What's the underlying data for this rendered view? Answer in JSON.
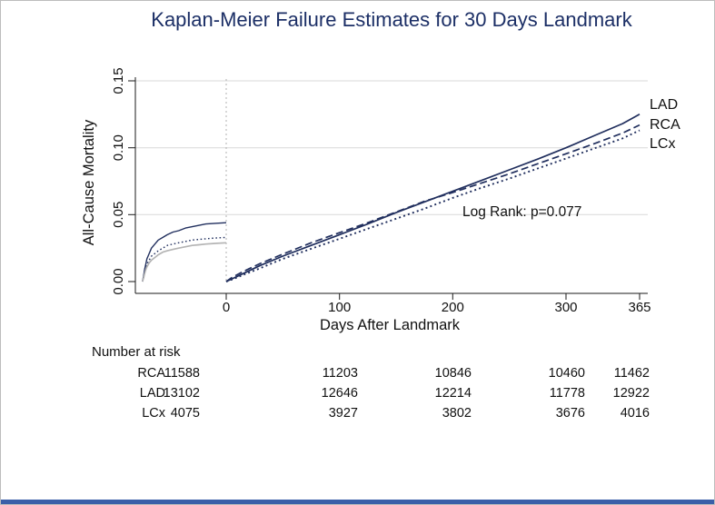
{
  "chart_data": {
    "type": "line",
    "title": "Kaplan-Meier Failure Estimates for 30 Days Landmark",
    "xlabel": "Days After Landmark",
    "ylabel": "All-Cause Mortality",
    "x_ticks": [
      "0",
      "100",
      "200",
      "300",
      "365"
    ],
    "x_tick_values": [
      0,
      100,
      200,
      300,
      365
    ],
    "y_ticks": [
      "0.00",
      "0.05",
      "0.10",
      "0.15"
    ],
    "y_tick_values": [
      0,
      0.05,
      0.1,
      0.15
    ],
    "xlim_days": [
      -75,
      365
    ],
    "ylim": [
      0,
      0.15
    ],
    "landmark_x": 0,
    "annotation": "Log Rank: p=0.077",
    "legend_labels": {
      "lad": "LAD",
      "rca": "RCA",
      "lcx": "LCx"
    },
    "colors": {
      "navy": "#212f5e",
      "gray": "#b4b4b4",
      "title": "#1c2f66",
      "bottom_bar": "#3a5fa8"
    },
    "series": [
      {
        "name": "LAD",
        "segment": "pre-landmark",
        "style": "solid",
        "color_key": "navy",
        "width": 1.4,
        "points": [
          [
            -74,
            0
          ],
          [
            -73,
            0.004
          ],
          [
            -72,
            0.009
          ],
          [
            -71,
            0.013
          ],
          [
            -70,
            0.017
          ],
          [
            -68,
            0.021
          ],
          [
            -66,
            0.025
          ],
          [
            -63,
            0.028
          ],
          [
            -60,
            0.031
          ],
          [
            -56,
            0.033
          ],
          [
            -52,
            0.035
          ],
          [
            -47,
            0.037
          ],
          [
            -42,
            0.038
          ],
          [
            -36,
            0.04
          ],
          [
            -30,
            0.041
          ],
          [
            -24,
            0.042
          ],
          [
            -18,
            0.043
          ],
          [
            -10,
            0.0435
          ],
          [
            0,
            0.044
          ]
        ]
      },
      {
        "name": "RCA",
        "segment": "pre-landmark",
        "style": "fine_dotted",
        "color_key": "navy",
        "width": 1.4,
        "points": [
          [
            -74,
            0
          ],
          [
            -73,
            0.003
          ],
          [
            -72,
            0.007
          ],
          [
            -71,
            0.01
          ],
          [
            -70,
            0.013
          ],
          [
            -68,
            0.016
          ],
          [
            -66,
            0.019
          ],
          [
            -63,
            0.021
          ],
          [
            -60,
            0.023
          ],
          [
            -56,
            0.025
          ],
          [
            -52,
            0.027
          ],
          [
            -47,
            0.028
          ],
          [
            -42,
            0.029
          ],
          [
            -36,
            0.03
          ],
          [
            -30,
            0.031
          ],
          [
            -24,
            0.0315
          ],
          [
            -18,
            0.032
          ],
          [
            -10,
            0.0325
          ],
          [
            0,
            0.033
          ]
        ]
      },
      {
        "name": "LCx",
        "segment": "pre-landmark",
        "style": "solid",
        "color_key": "gray",
        "width": 1.7,
        "points": [
          [
            -74,
            0
          ],
          [
            -73,
            0.0025
          ],
          [
            -72,
            0.006
          ],
          [
            -71,
            0.009
          ],
          [
            -70,
            0.011
          ],
          [
            -68,
            0.014
          ],
          [
            -66,
            0.016
          ],
          [
            -63,
            0.018
          ],
          [
            -60,
            0.02
          ],
          [
            -56,
            0.022
          ],
          [
            -52,
            0.023
          ],
          [
            -47,
            0.024
          ],
          [
            -42,
            0.025
          ],
          [
            -36,
            0.026
          ],
          [
            -30,
            0.027
          ],
          [
            -24,
            0.0275
          ],
          [
            -18,
            0.028
          ],
          [
            -10,
            0.0285
          ],
          [
            0,
            0.029
          ]
        ]
      },
      {
        "name": "LAD",
        "segment": "post-landmark",
        "style": "solid",
        "color_key": "navy",
        "width": 1.7,
        "points": [
          [
            0,
            0
          ],
          [
            5,
            0.002
          ],
          [
            15,
            0.006
          ],
          [
            30,
            0.012
          ],
          [
            50,
            0.019
          ],
          [
            75,
            0.027
          ],
          [
            100,
            0.035
          ],
          [
            125,
            0.043
          ],
          [
            150,
            0.0515
          ],
          [
            175,
            0.0595
          ],
          [
            200,
            0.0675
          ],
          [
            225,
            0.0755
          ],
          [
            250,
            0.0835
          ],
          [
            275,
            0.0915
          ],
          [
            300,
            0.1
          ],
          [
            325,
            0.109
          ],
          [
            350,
            0.118
          ],
          [
            365,
            0.125
          ]
        ]
      },
      {
        "name": "RCA",
        "segment": "post-landmark",
        "style": "dashed",
        "color_key": "navy",
        "width": 1.7,
        "points": [
          [
            0,
            0
          ],
          [
            5,
            0.003
          ],
          [
            15,
            0.0075
          ],
          [
            30,
            0.0135
          ],
          [
            50,
            0.0205
          ],
          [
            75,
            0.029
          ],
          [
            100,
            0.0365
          ],
          [
            125,
            0.044
          ],
          [
            150,
            0.052
          ],
          [
            175,
            0.06
          ],
          [
            200,
            0.0665
          ],
          [
            225,
            0.0735
          ],
          [
            250,
            0.0805
          ],
          [
            275,
            0.088
          ],
          [
            300,
            0.0955
          ],
          [
            325,
            0.103
          ],
          [
            350,
            0.111
          ],
          [
            365,
            0.117
          ]
        ]
      },
      {
        "name": "LCx",
        "segment": "post-landmark",
        "style": "dotted",
        "color_key": "navy",
        "width": 1.9,
        "points": [
          [
            0,
            0
          ],
          [
            5,
            0.0015
          ],
          [
            15,
            0.005
          ],
          [
            30,
            0.01
          ],
          [
            50,
            0.017
          ],
          [
            75,
            0.0245
          ],
          [
            100,
            0.032
          ],
          [
            125,
            0.0395
          ],
          [
            150,
            0.047
          ],
          [
            175,
            0.0545
          ],
          [
            200,
            0.0625
          ],
          [
            225,
            0.07
          ],
          [
            250,
            0.077
          ],
          [
            275,
            0.0845
          ],
          [
            300,
            0.092
          ],
          [
            325,
            0.0995
          ],
          [
            350,
            0.107
          ],
          [
            365,
            0.113
          ]
        ]
      }
    ]
  },
  "risk_table": {
    "heading": "Number at risk",
    "rows": [
      {
        "label": "RCA",
        "values": [
          "11588",
          "11203",
          "10846",
          "10460",
          "11462"
        ]
      },
      {
        "label": "LAD",
        "values": [
          "13102",
          "12646",
          "12214",
          "11778",
          "12922"
        ]
      },
      {
        "label": "LCx",
        "values": [
          "4075",
          "3927",
          "3802",
          "3676",
          "4016"
        ]
      }
    ]
  }
}
